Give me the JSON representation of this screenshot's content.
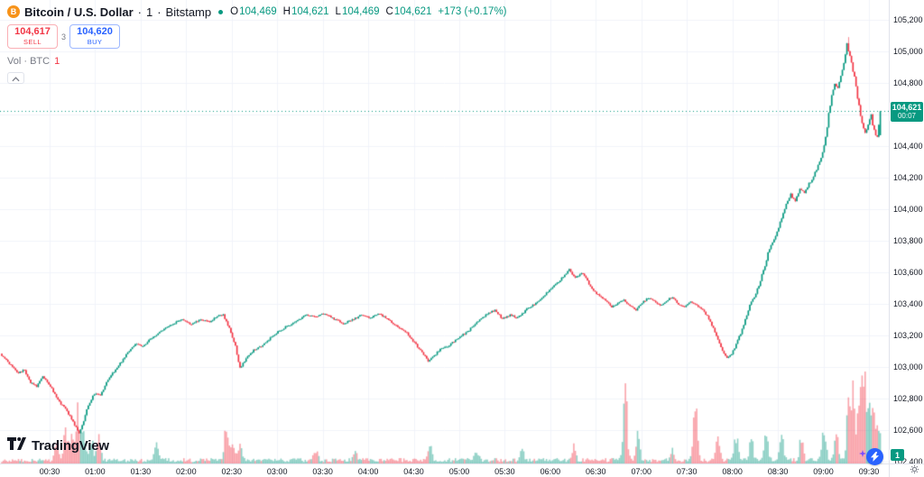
{
  "header": {
    "symbol": "Bitcoin / U.S. Dollar",
    "sep": "·",
    "interval": "1",
    "exchange": "Bitstamp",
    "ohlc": {
      "o_label": "O",
      "o_value": "104,469",
      "h_label": "H",
      "h_value": "104,621",
      "l_label": "L",
      "l_value": "104,469",
      "c_label": "C",
      "c_value": "104,621",
      "change": "+173 (+0.17%)"
    }
  },
  "trade_panel": {
    "sell_price": "104,617",
    "sell_label": "SELL",
    "spread": "3",
    "buy_price": "104,620",
    "buy_label": "BUY"
  },
  "volume_legend": {
    "label": "Vol · BTC",
    "value": "1"
  },
  "current_price_label": {
    "price": "104,621",
    "countdown": "00:07"
  },
  "watermark_logo": {
    "text": "TradingView"
  },
  "axis_badge": "1",
  "icons": {
    "bitcoin_glyph": "B"
  },
  "colors": {
    "up": "#089981",
    "down": "#f23645",
    "buy": "#2962ff",
    "sell": "#f23645",
    "bitcoin_orange": "#f7931a",
    "grid": "#f0f3fa",
    "axis_text": "#131722",
    "muted_text": "#787b86"
  },
  "chart_data": {
    "type": "candlestick",
    "symbol": "BTCUSD",
    "exchange": "Bitstamp",
    "interval_minutes": 1,
    "x_unit": "minutes_from_00:00",
    "x_range": [
      -2.7,
      583.1
    ],
    "price_range": [
      102390,
      105325
    ],
    "price_ticks": [
      105200,
      105000,
      104800,
      104600,
      104400,
      104200,
      104000,
      103800,
      103600,
      103400,
      103200,
      103000,
      102800,
      102600,
      102400
    ],
    "time_ticks": [
      [
        30,
        "00:30"
      ],
      [
        60,
        "01:00"
      ],
      [
        90,
        "01:30"
      ],
      [
        120,
        "02:00"
      ],
      [
        150,
        "02:30"
      ],
      [
        180,
        "03:00"
      ],
      [
        210,
        "03:30"
      ],
      [
        240,
        "04:00"
      ],
      [
        270,
        "04:30"
      ],
      [
        300,
        "05:00"
      ],
      [
        330,
        "05:30"
      ],
      [
        360,
        "06:00"
      ],
      [
        390,
        "06:30"
      ],
      [
        420,
        "07:00"
      ],
      [
        450,
        "07:30"
      ],
      [
        480,
        "08:00"
      ],
      [
        510,
        "08:30"
      ],
      [
        540,
        "09:00"
      ],
      [
        570,
        "09:30"
      ]
    ],
    "current_price": 104621,
    "last_candle": {
      "open": 104469,
      "high": 104621,
      "low": 104469,
      "close": 104621
    },
    "session_low": {
      "t": 50,
      "price": 102530
    },
    "session_high": {
      "t": 556,
      "price": 105090
    },
    "price_path": [
      [
        -2,
        103085
      ],
      [
        2,
        103045
      ],
      [
        6,
        103000
      ],
      [
        10,
        102965
      ],
      [
        14,
        102985
      ],
      [
        18,
        102905
      ],
      [
        22,
        102875
      ],
      [
        26,
        102940
      ],
      [
        30,
        102895
      ],
      [
        34,
        102830
      ],
      [
        38,
        102770
      ],
      [
        42,
        102725
      ],
      [
        46,
        102650
      ],
      [
        50,
        102580
      ],
      [
        53,
        102665
      ],
      [
        56,
        102755
      ],
      [
        60,
        102835
      ],
      [
        64,
        102820
      ],
      [
        68,
        102905
      ],
      [
        72,
        102960
      ],
      [
        76,
        103010
      ],
      [
        80,
        103065
      ],
      [
        84,
        103115
      ],
      [
        88,
        103150
      ],
      [
        92,
        103130
      ],
      [
        96,
        103170
      ],
      [
        100,
        103200
      ],
      [
        106,
        103240
      ],
      [
        112,
        103275
      ],
      [
        118,
        103300
      ],
      [
        124,
        103270
      ],
      [
        130,
        103305
      ],
      [
        136,
        103285
      ],
      [
        141,
        103325
      ],
      [
        145,
        103330
      ],
      [
        149,
        103250
      ],
      [
        153,
        103130
      ],
      [
        156,
        102995
      ],
      [
        160,
        103050
      ],
      [
        165,
        103105
      ],
      [
        170,
        103135
      ],
      [
        176,
        103185
      ],
      [
        182,
        103230
      ],
      [
        188,
        103265
      ],
      [
        194,
        103300
      ],
      [
        200,
        103330
      ],
      [
        206,
        103320
      ],
      [
        212,
        103340
      ],
      [
        218,
        103305
      ],
      [
        224,
        103275
      ],
      [
        230,
        103300
      ],
      [
        236,
        103330
      ],
      [
        242,
        103310
      ],
      [
        248,
        103340
      ],
      [
        254,
        103300
      ],
      [
        260,
        103255
      ],
      [
        266,
        103215
      ],
      [
        271,
        103155
      ],
      [
        276,
        103090
      ],
      [
        280,
        103040
      ],
      [
        284,
        103070
      ],
      [
        288,
        103115
      ],
      [
        294,
        103140
      ],
      [
        300,
        103185
      ],
      [
        306,
        103225
      ],
      [
        312,
        103280
      ],
      [
        318,
        103330
      ],
      [
        324,
        103360
      ],
      [
        329,
        103305
      ],
      [
        334,
        103330
      ],
      [
        339,
        103310
      ],
      [
        344,
        103360
      ],
      [
        350,
        103400
      ],
      [
        356,
        103445
      ],
      [
        362,
        103505
      ],
      [
        368,
        103560
      ],
      [
        373,
        103615
      ],
      [
        377,
        103560
      ],
      [
        381,
        103600
      ],
      [
        385,
        103545
      ],
      [
        389,
        103485
      ],
      [
        393,
        103450
      ],
      [
        397,
        103420
      ],
      [
        401,
        103380
      ],
      [
        405,
        103405
      ],
      [
        409,
        103425
      ],
      [
        413,
        103390
      ],
      [
        417,
        103360
      ],
      [
        421,
        103410
      ],
      [
        425,
        103440
      ],
      [
        429,
        103420
      ],
      [
        433,
        103390
      ],
      [
        437,
        103420
      ],
      [
        441,
        103445
      ],
      [
        445,
        103400
      ],
      [
        449,
        103380
      ],
      [
        453,
        103420
      ],
      [
        457,
        103390
      ],
      [
        461,
        103360
      ],
      [
        465,
        103305
      ],
      [
        469,
        103225
      ],
      [
        473,
        103125
      ],
      [
        477,
        103055
      ],
      [
        480,
        103080
      ],
      [
        483,
        103145
      ],
      [
        486,
        103215
      ],
      [
        489,
        103300
      ],
      [
        492,
        103390
      ],
      [
        495,
        103445
      ],
      [
        498,
        103520
      ],
      [
        501,
        103610
      ],
      [
        504,
        103720
      ],
      [
        507,
        103790
      ],
      [
        510,
        103855
      ],
      [
        513,
        103950
      ],
      [
        516,
        104030
      ],
      [
        519,
        104090
      ],
      [
        522,
        104050
      ],
      [
        525,
        104130
      ],
      [
        528,
        104100
      ],
      [
        531,
        104160
      ],
      [
        534,
        104210
      ],
      [
        537,
        104280
      ],
      [
        540,
        104360
      ],
      [
        542,
        104460
      ],
      [
        544,
        104600
      ],
      [
        546,
        104720
      ],
      [
        548,
        104800
      ],
      [
        550,
        104770
      ],
      [
        552,
        104850
      ],
      [
        554,
        104930
      ],
      [
        556,
        105040
      ],
      [
        558,
        104970
      ],
      [
        560,
        104880
      ],
      [
        562,
        104780
      ],
      [
        564,
        104650
      ],
      [
        566,
        104550
      ],
      [
        568,
        104475
      ],
      [
        570,
        104540
      ],
      [
        572,
        104600
      ],
      [
        574,
        104490
      ],
      [
        576,
        104455
      ],
      [
        578,
        104621
      ]
    ],
    "volume_spikes": [
      [
        34,
        30
      ],
      [
        40,
        48
      ],
      [
        44,
        40
      ],
      [
        48,
        65
      ],
      [
        52,
        42
      ],
      [
        57,
        30
      ],
      [
        62,
        33
      ],
      [
        100,
        25
      ],
      [
        146,
        45
      ],
      [
        150,
        28
      ],
      [
        155,
        30
      ],
      [
        205,
        15
      ],
      [
        231,
        12
      ],
      [
        280,
        22
      ],
      [
        311,
        12
      ],
      [
        341,
        15
      ],
      [
        375,
        18
      ],
      [
        409,
        95
      ],
      [
        417,
        40
      ],
      [
        440,
        15
      ],
      [
        455,
        85
      ],
      [
        470,
        28
      ],
      [
        482,
        35
      ],
      [
        492,
        30
      ],
      [
        502,
        38
      ],
      [
        512,
        42
      ],
      [
        525,
        30
      ],
      [
        540,
        48
      ],
      [
        548,
        40
      ],
      [
        556,
        75
      ],
      [
        559,
        100
      ],
      [
        563,
        70
      ],
      [
        566,
        115
      ],
      [
        569,
        60
      ],
      [
        572,
        80
      ],
      [
        576,
        55
      ]
    ],
    "volume_opacity": 0.45
  }
}
